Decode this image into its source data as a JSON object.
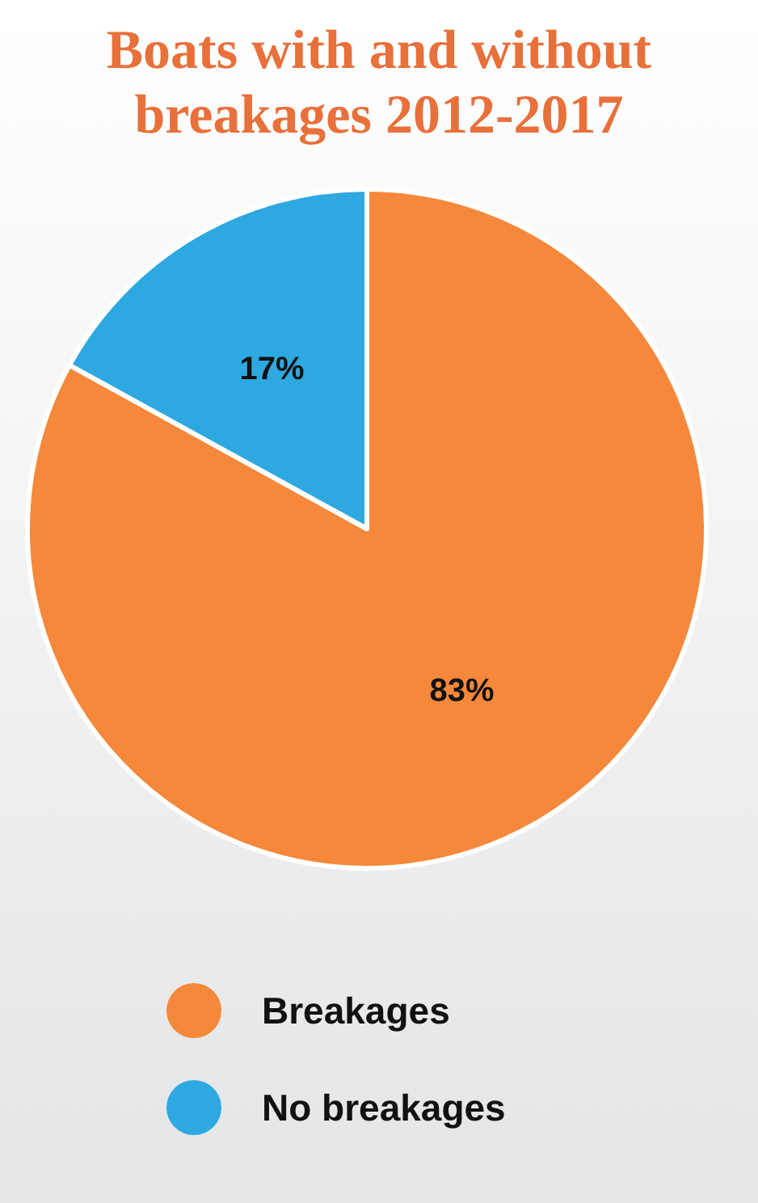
{
  "chart_data": {
    "type": "pie",
    "title": "Boats with and without breakages 2012-2017",
    "categories": [
      "Breakages",
      "No breakages"
    ],
    "values": [
      83,
      17
    ],
    "colors": [
      "#f5883a",
      "#2ea8e0"
    ],
    "value_labels": [
      "83%",
      "17%"
    ],
    "legend": "bottom"
  }
}
